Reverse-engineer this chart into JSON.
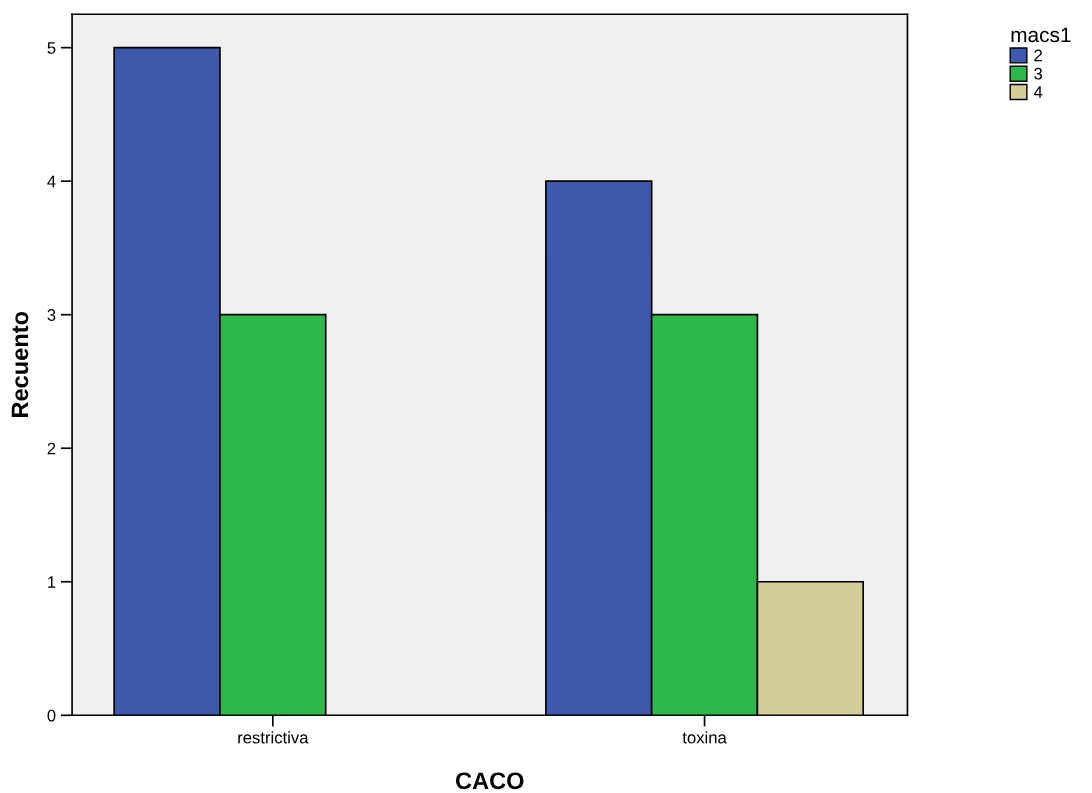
{
  "chart_data": {
    "type": "bar",
    "xlabel": "CACO",
    "ylabel": "Recuento",
    "legend_title": "macs1",
    "categories": [
      "restrictiva",
      "toxina"
    ],
    "series": [
      {
        "name": "2",
        "color": "#3e58ac",
        "values": [
          5,
          4
        ]
      },
      {
        "name": "3",
        "color": "#2eb84b",
        "values": [
          3,
          3
        ]
      },
      {
        "name": "4",
        "color": "#d3ce97",
        "values": [
          null,
          1
        ]
      }
    ],
    "ylim": [
      0,
      5.25
    ],
    "yticks": [
      0,
      1,
      2,
      3,
      4,
      5
    ],
    "grid": false,
    "legend": "top right"
  }
}
